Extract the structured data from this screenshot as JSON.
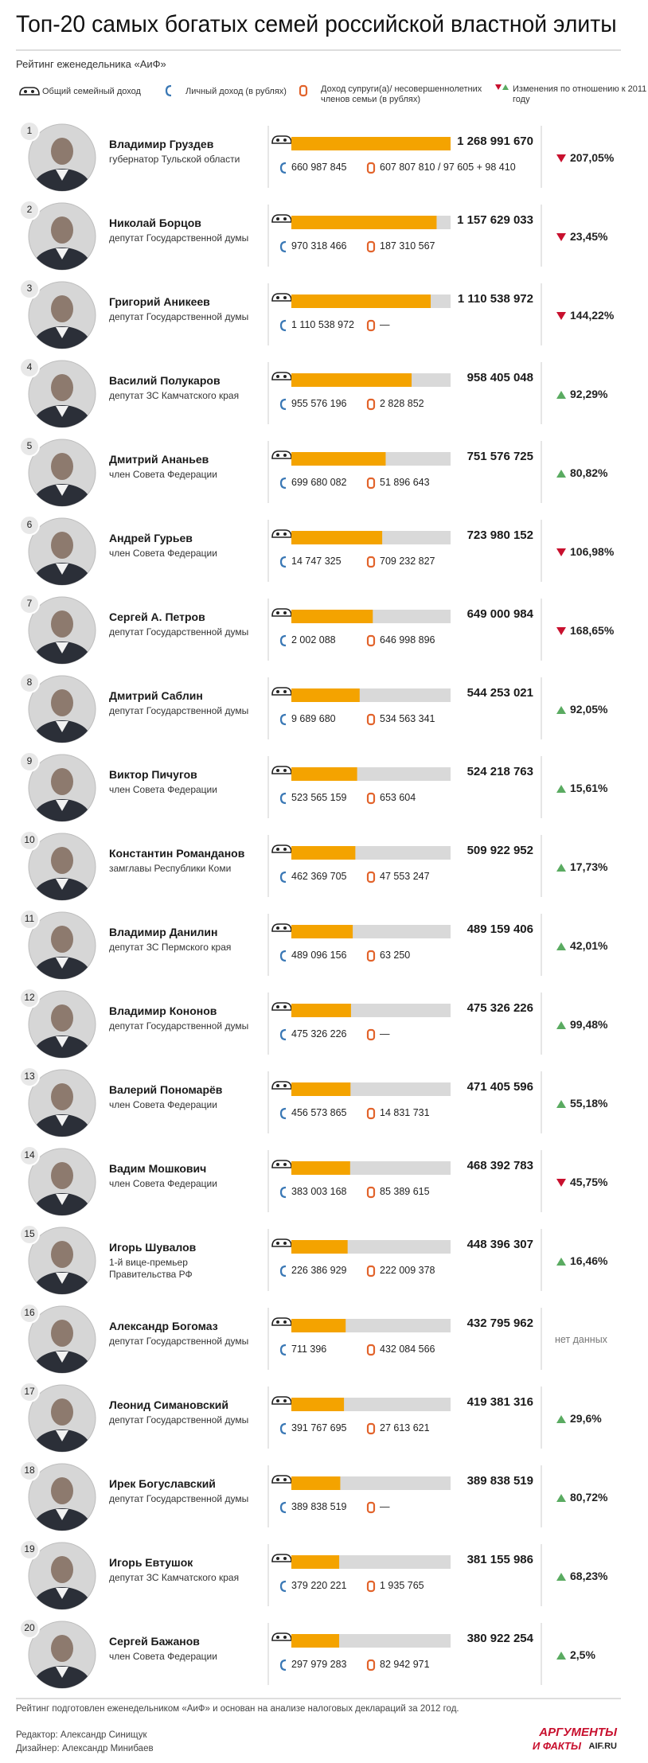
{
  "chart_data": {
    "type": "bar",
    "orientation": "horizontal",
    "title": "Топ-20 самых богатых семей российской властной элиты",
    "subtitle": "Рейтинг еженедельника «АиФ»",
    "legend": [
      "Общий семейный доход",
      "Личный доход (в рублях)",
      "Доход супруги(а)/ несовершеннолетних членов семьи (в рублях)",
      "Изменения по отношению к 2011 году"
    ],
    "bar_color": "#f4a300",
    "track_color": "#d9d9d9",
    "up_color": "#5aab61",
    "down_color": "#c8102e",
    "xlim": [
      0,
      1268991670
    ],
    "ranks": [
      1,
      2,
      3,
      4,
      5,
      6,
      7,
      8,
      9,
      10,
      11,
      12,
      13,
      14,
      15,
      16,
      17,
      18,
      19,
      20
    ],
    "categories": [
      "Владимир Груздев",
      "Николай Борцов",
      "Григорий Аникеев",
      "Василий Полукаров",
      "Дмитрий Ананьев",
      "Андрей Гурьев",
      "Сергей А. Петров",
      "Дмитрий Саблин",
      "Виктор Пичугов",
      "Константин Романданов",
      "Владимир Данилин",
      "Владимир Кононов",
      "Валерий Пономарёв",
      "Вадим Мошкович",
      "Игорь Шувалов",
      "Александр Богомаз",
      "Леонид Симановский",
      "Ирек Богуславский",
      "Игорь Евтушок",
      "Сергей Бажанов"
    ],
    "roles": [
      "губернатор Тульской области",
      "депутат Государственной думы",
      "депутат Государственной думы",
      "депутат ЗС Камчатского края",
      "член Совета Федерации",
      "член Совета Федерации",
      "депутат Государственной думы",
      "депутат Государственной думы",
      "член Совета Федерации",
      "замглавы Республики Коми",
      "депутат ЗС Пермского края",
      "депутат Государственной думы",
      "член Совета Федерации",
      "член Совета Федерации",
      "1-й вице-премьер\nПравительства РФ",
      "депутат Государственной думы",
      "депутат Государственной думы",
      "депутат Государственной думы",
      "депутат ЗС Камчатского края",
      "член Совета Федерации"
    ],
    "values": [
      1268991670,
      1157629033,
      1110538972,
      958405048,
      751576725,
      723980152,
      649000984,
      544253021,
      524218763,
      509922952,
      489159406,
      475326226,
      471405596,
      468392783,
      448396307,
      432795962,
      419381316,
      389838519,
      381155986,
      380922254
    ],
    "value_labels": [
      "1 268 991 670",
      "1 157 629 033",
      "1 110 538 972",
      "958 405 048",
      "751 576 725",
      "723 980 152",
      "649 000 984",
      "544 253 021",
      "524 218 763",
      "509 922 952",
      "489 159 406",
      "475 326 226",
      "471 405 596",
      "468 392 783",
      "448 396 307",
      "432 795 962",
      "419 381 316",
      "389 838 519",
      "381 155 986",
      "380 922 254"
    ],
    "personal": [
      "660 987 845",
      "970 318 466",
      "1 110 538 972",
      "955 576 196",
      "699 680 082",
      "14 747 325",
      "2 002 088",
      "9 689 680",
      "523 565 159",
      "462 369 705",
      "489 096 156",
      "475 326 226",
      "456 573 865",
      "383 003 168",
      "226 386 929",
      "711 396",
      "391 767 695",
      "389 838 519",
      "379 220 221",
      "297 979 283"
    ],
    "spouse": [
      "607 807 810 / 97 605 + 98 410",
      "187 310 567",
      "—",
      "2 828 852",
      "51 896 643",
      "709 232 827",
      "646 998 896",
      "534 563 341",
      "653 604",
      "47 553 247",
      "63 250",
      "—",
      "14 831 731",
      "85 389 615",
      "222 009 378",
      "432 084 566",
      "27 613 621",
      "—",
      "1 935 765",
      "82 942 971"
    ],
    "changes": [
      "207,05%",
      "23,45%",
      "144,22%",
      "92,29%",
      "80,82%",
      "106,98%",
      "168,65%",
      "92,05%",
      "15,61%",
      "17,73%",
      "42,01%",
      "99,48%",
      "55,18%",
      "45,75%",
      "16,46%",
      "нет данных",
      "29,6%",
      "80,72%",
      "68,23%",
      "2,5%"
    ],
    "change_directions": [
      "down",
      "down",
      "down",
      "up",
      "up",
      "down",
      "down",
      "up",
      "up",
      "up",
      "up",
      "up",
      "up",
      "down",
      "up",
      null,
      "up",
      "up",
      "up",
      "up"
    ],
    "note": "Рейтинг подготовлен еженедельником «АиФ» и основан на анализе налоговых деклараций за 2012 год.",
    "editor": "Редактор: Александр Синищук",
    "designer": "Дизайнер: Александр Минибаев",
    "logo": [
      "АРГУМЕНТЫ",
      "И ФАКТЫ",
      "AIF.RU"
    ]
  }
}
